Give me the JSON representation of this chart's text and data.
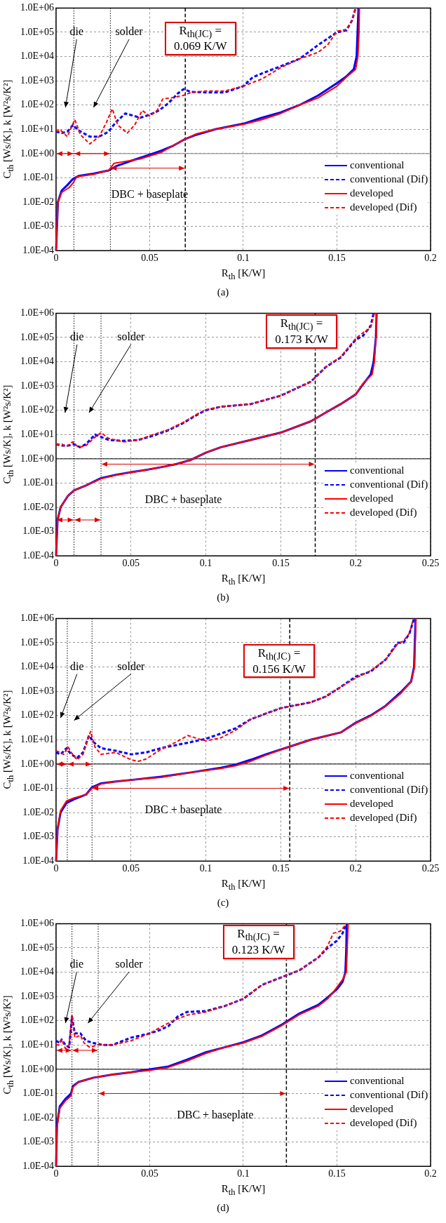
{
  "chart_data": [
    {
      "type": "line",
      "title": "(a)",
      "xlabel": "R$_{th}$ [K/W]",
      "ylabel": "C$_{th}$ [Ws/K], k [W²s/K²]",
      "log": "y",
      "grid": true,
      "legend": "right",
      "marker": "none",
      "xlim": [
        0,
        0.2
      ],
      "xticks": [
        0,
        0.05,
        0.1,
        0.15,
        0.2
      ],
      "ylim": [
        0.0001,
        1000000
      ],
      "yticks": [
        {
          "value": 0.0001,
          "label": "1.0E-04"
        },
        {
          "value": 0.001,
          "label": "1.0E-03"
        },
        {
          "value": 0.01,
          "label": "1.0E-02"
        },
        {
          "value": 0.1,
          "label": "1.0E-01"
        },
        {
          "value": 1,
          "label": "1.0E+00"
        },
        {
          "value": 10,
          "label": "1.0E+01"
        },
        {
          "value": 100,
          "label": "1.0E+02"
        },
        {
          "value": 1000,
          "label": "1.0E+03"
        },
        {
          "value": 10000,
          "label": "1.0E+04"
        },
        {
          "value": 100000,
          "label": "1.0E+05"
        },
        {
          "value": 1000000,
          "label": "1.0E+06"
        }
      ],
      "series": [
        {
          "name": "conventional",
          "color": "#0000ff",
          "line_style": "solid",
          "x": [
            0,
            0.001,
            0.003,
            0.006,
            0.009,
            0.012,
            0.02,
            0.028,
            0.032,
            0.04,
            0.05,
            0.056,
            0.062,
            0.069,
            0.075,
            0.085,
            0.1,
            0.11,
            0.12,
            0.13,
            0.14,
            0.15,
            0.155,
            0.159,
            0.1605,
            0.161,
            0.1615
          ],
          "values": [
            0.0001,
            0.01,
            0.03,
            0.05,
            0.09,
            0.12,
            0.15,
            0.2,
            0.3,
            0.5,
            0.9,
            1.3,
            2,
            4,
            6,
            10,
            17,
            30,
            50,
            100,
            250,
            800,
            1500,
            3000,
            10000,
            100000,
            1000000
          ]
        },
        {
          "name": "conventional (Dif)",
          "color": "#0000ff",
          "line_style": "dashed",
          "x": [
            0,
            0.003,
            0.006,
            0.009,
            0.012,
            0.018,
            0.023,
            0.028,
            0.032,
            0.037,
            0.045,
            0.05,
            0.055,
            0.06,
            0.065,
            0.068,
            0.072,
            0.08,
            0.09,
            0.1,
            0.105,
            0.11,
            0.12,
            0.13,
            0.14,
            0.15,
            0.155,
            0.158,
            0.16
          ],
          "values": [
            8,
            7,
            8,
            15,
            9,
            5,
            5,
            8,
            20,
            45,
            30,
            40,
            60,
            120,
            300,
            450,
            350,
            330,
            330,
            600,
            1400,
            2000,
            4000,
            8000,
            30000,
            100000,
            120000,
            300000,
            1000000
          ]
        },
        {
          "name": "developed",
          "color": "#ff0000",
          "line_style": "solid",
          "x": [
            0,
            0.001,
            0.003,
            0.007,
            0.009,
            0.011,
            0.02,
            0.028,
            0.031,
            0.035,
            0.045,
            0.05,
            0.056,
            0.062,
            0.069,
            0.075,
            0.085,
            0.1,
            0.11,
            0.12,
            0.13,
            0.14,
            0.15,
            0.155,
            0.16,
            0.1612,
            0.1618,
            0.162
          ],
          "values": [
            0.0001,
            0.01,
            0.025,
            0.04,
            0.06,
            0.11,
            0.14,
            0.2,
            0.4,
            0.45,
            0.6,
            0.8,
            1.1,
            2,
            4,
            6.5,
            10,
            16,
            25,
            45,
            100,
            200,
            600,
            1400,
            3000,
            10000,
            100000,
            1000000
          ]
        },
        {
          "name": "developed (Dif)",
          "color": "#ff0000",
          "line_style": "dashed",
          "x": [
            0,
            0.002,
            0.004,
            0.006,
            0.01,
            0.013,
            0.018,
            0.023,
            0.027,
            0.03,
            0.033,
            0.038,
            0.042,
            0.046,
            0.05,
            0.054,
            0.057,
            0.062,
            0.068,
            0.072,
            0.08,
            0.09,
            0.1,
            0.11,
            0.12,
            0.13,
            0.14,
            0.145,
            0.15,
            0.155,
            0.158,
            0.16
          ],
          "values": [
            8,
            10,
            7,
            5,
            25,
            6,
            2.5,
            5,
            20,
            70,
            15,
            7,
            15,
            60,
            35,
            60,
            180,
            200,
            250,
            330,
            380,
            380,
            600,
            1200,
            3500,
            8000,
            15000,
            30000,
            110000,
            130000,
            300000,
            1000000
          ]
        }
      ],
      "ref_lines": [
        {
          "axis": "y",
          "value": 1,
          "label": null,
          "color": "#808080",
          "line_style": "solid"
        },
        {
          "axis": "x",
          "value": 0.0095,
          "label": null,
          "color": "#000000",
          "line_style": "dotted"
        },
        {
          "axis": "x",
          "value": 0.029,
          "label": null,
          "color": "#000000",
          "line_style": "dotted"
        },
        {
          "axis": "x",
          "value": 0.069,
          "label": "R$_{th(JC)}$ = 0.069 K/W",
          "color": "#000000",
          "line_style": "dashed"
        }
      ],
      "annotations": [
        "die",
        "solder",
        "DBC + baseplate"
      ]
    },
    {
      "type": "line",
      "title": "(b)",
      "xlabel": "R$_{th}$ [K/W]",
      "ylabel": "C$_{th}$ [Ws/K], k [W²s/K²]",
      "log": "y",
      "grid": true,
      "legend": "right",
      "marker": "none",
      "xlim": [
        0,
        0.25
      ],
      "xticks": [
        0,
        0.05,
        0.1,
        0.15,
        0.2,
        0.25
      ],
      "ylim": [
        0.0001,
        1000000
      ],
      "yticks": [
        {
          "value": 0.0001,
          "label": "1.0E-04"
        },
        {
          "value": 0.001,
          "label": "1.0E-03"
        },
        {
          "value": 0.01,
          "label": "1.0E-02"
        },
        {
          "value": 0.1,
          "label": "1.0E-01"
        },
        {
          "value": 1,
          "label": "1.0E+00"
        },
        {
          "value": 10,
          "label": "1.0E+01"
        },
        {
          "value": 100,
          "label": "1.0E+02"
        },
        {
          "value": 1000,
          "label": "1.0E+03"
        },
        {
          "value": 10000,
          "label": "1.0E+04"
        },
        {
          "value": 100000,
          "label": "1.0E+05"
        },
        {
          "value": 1000000,
          "label": "1.0E+06"
        }
      ],
      "series": [
        {
          "name": "conventional",
          "color": "#0000ff",
          "line_style": "solid",
          "x": [
            0,
            0.001,
            0.003,
            0.008,
            0.012,
            0.02,
            0.03,
            0.04,
            0.05,
            0.06,
            0.07,
            0.08,
            0.09,
            0.1,
            0.11,
            0.13,
            0.15,
            0.17,
            0.18,
            0.19,
            0.2,
            0.205,
            0.21,
            0.212,
            0.2135,
            0.214
          ],
          "values": [
            0.0001,
            0.003,
            0.01,
            0.03,
            0.05,
            0.08,
            0.16,
            0.22,
            0.28,
            0.35,
            0.45,
            0.6,
            0.9,
            1.8,
            3,
            6,
            12,
            35,
            80,
            180,
            450,
            1200,
            3000,
            10000,
            100000,
            1000000
          ]
        },
        {
          "name": "conventional (Dif)",
          "color": "#0000ff",
          "line_style": "dashed",
          "x": [
            0,
            0.004,
            0.008,
            0.012,
            0.016,
            0.02,
            0.026,
            0.03,
            0.035,
            0.045,
            0.055,
            0.065,
            0.075,
            0.085,
            0.095,
            0.1,
            0.11,
            0.13,
            0.15,
            0.17,
            0.18,
            0.19,
            0.2,
            0.205,
            0.21,
            0.212
          ],
          "values": [
            4,
            3.5,
            3.5,
            4,
            3,
            4,
            10,
            8,
            6,
            5.5,
            6,
            9,
            15,
            30,
            70,
            100,
            140,
            180,
            400,
            1500,
            6000,
            15000,
            80000,
            120000,
            300000,
            1000000
          ]
        },
        {
          "name": "developed",
          "color": "#ff0000",
          "line_style": "solid",
          "x": [
            0,
            0.001,
            0.003,
            0.008,
            0.012,
            0.02,
            0.03,
            0.04,
            0.05,
            0.06,
            0.07,
            0.08,
            0.09,
            0.1,
            0.11,
            0.13,
            0.15,
            0.17,
            0.18,
            0.19,
            0.2,
            0.205,
            0.211,
            0.2125,
            0.2135,
            0.2138
          ],
          "values": [
            0.0001,
            0.003,
            0.01,
            0.03,
            0.05,
            0.08,
            0.15,
            0.21,
            0.27,
            0.35,
            0.45,
            0.6,
            0.9,
            1.8,
            3,
            6,
            12,
            35,
            80,
            180,
            450,
            1300,
            3000,
            10000,
            100000,
            1000000
          ]
        },
        {
          "name": "developed (Dif)",
          "color": "#ff0000",
          "line_style": "dashed",
          "x": [
            0,
            0.004,
            0.007,
            0.011,
            0.015,
            0.02,
            0.025,
            0.03,
            0.035,
            0.045,
            0.055,
            0.065,
            0.075,
            0.085,
            0.095,
            0.1,
            0.11,
            0.13,
            0.15,
            0.17,
            0.18,
            0.19,
            0.2,
            0.205,
            0.21,
            0.2125
          ],
          "values": [
            4,
            4,
            3.2,
            5,
            3,
            3.5,
            7,
            12,
            7,
            5,
            6,
            10,
            16,
            32,
            75,
            105,
            140,
            180,
            400,
            1500,
            6000,
            16000,
            90000,
            160000,
            250000,
            1000000
          ]
        }
      ],
      "ref_lines": [
        {
          "axis": "y",
          "value": 1,
          "label": null,
          "color": "#000000",
          "line_style": "solid"
        },
        {
          "axis": "x",
          "value": 0.012,
          "label": null,
          "color": "#000000",
          "line_style": "dotted"
        },
        {
          "axis": "x",
          "value": 0.03,
          "label": null,
          "color": "#000000",
          "line_style": "dotted"
        },
        {
          "axis": "x",
          "value": 0.173,
          "label": "R$_{th(JC)}$ = 0.173 K/W",
          "color": "#000000",
          "line_style": "dashed"
        }
      ],
      "annotations": [
        "die",
        "solder",
        "DBC + baseplate"
      ]
    },
    {
      "type": "line",
      "title": "(c)",
      "xlabel": "R$_{th}$ [K/W]",
      "ylabel": "C$_{th}$ [Ws/K], k [W²s/K²]",
      "log": "y",
      "grid": true,
      "legend": "right",
      "marker": "none",
      "xlim": [
        0,
        0.25
      ],
      "xticks": [
        0,
        0.05,
        0.1,
        0.15,
        0.2,
        0.25
      ],
      "ylim": [
        0.0001,
        1000000
      ],
      "yticks": [
        {
          "value": 0.0001,
          "label": "1.0E-04"
        },
        {
          "value": 0.001,
          "label": "1.0E-03"
        },
        {
          "value": 0.01,
          "label": "1.0E-02"
        },
        {
          "value": 0.1,
          "label": "1.0E-01"
        },
        {
          "value": 1,
          "label": "1.0E+00"
        },
        {
          "value": 10,
          "label": "1.0E+01"
        },
        {
          "value": 100,
          "label": "1.0E+02"
        },
        {
          "value": 1000,
          "label": "1.0E+03"
        },
        {
          "value": 10000,
          "label": "1.0E+04"
        },
        {
          "value": 100000,
          "label": "1.0E+05"
        },
        {
          "value": 1000000,
          "label": "1.0E+06"
        }
      ],
      "series": [
        {
          "name": "conventional",
          "color": "#0000ff",
          "line_style": "solid",
          "x": [
            0,
            0.001,
            0.003,
            0.007,
            0.012,
            0.02,
            0.024,
            0.03,
            0.04,
            0.05,
            0.07,
            0.09,
            0.11,
            0.12,
            0.13,
            0.14,
            0.155,
            0.17,
            0.19,
            0.2,
            0.21,
            0.22,
            0.23,
            0.237,
            0.239,
            0.2395,
            0.24
          ],
          "values": [
            0.0001,
            0.002,
            0.01,
            0.025,
            0.035,
            0.055,
            0.11,
            0.16,
            0.19,
            0.22,
            0.3,
            0.45,
            0.7,
            0.95,
            1.5,
            2.5,
            5,
            10,
            20,
            50,
            100,
            250,
            900,
            2500,
            10000,
            100000,
            1000000
          ]
        },
        {
          "name": "conventional (Dif)",
          "color": "#0000ff",
          "line_style": "dashed",
          "x": [
            0,
            0.003,
            0.007,
            0.01,
            0.014,
            0.018,
            0.022,
            0.025,
            0.03,
            0.04,
            0.05,
            0.06,
            0.07,
            0.08,
            0.09,
            0.1,
            0.11,
            0.12,
            0.13,
            0.14,
            0.15,
            0.17,
            0.18,
            0.19,
            0.2,
            0.21,
            0.22,
            0.228,
            0.232,
            0.236,
            0.239
          ],
          "values": [
            3,
            2.5,
            4.5,
            2.5,
            1.8,
            3,
            15,
            8,
            4.5,
            3.5,
            2.5,
            3,
            4.5,
            6,
            8,
            11,
            18,
            30,
            70,
            120,
            200,
            350,
            600,
            1500,
            4000,
            6500,
            20000,
            100000,
            100000,
            250000,
            1000000
          ]
        },
        {
          "name": "developed",
          "color": "#ff0000",
          "line_style": "solid",
          "x": [
            0,
            0.001,
            0.003,
            0.007,
            0.012,
            0.02,
            0.024,
            0.03,
            0.04,
            0.05,
            0.07,
            0.09,
            0.11,
            0.12,
            0.13,
            0.14,
            0.155,
            0.17,
            0.19,
            0.2,
            0.21,
            0.22,
            0.23,
            0.237,
            0.2393,
            0.2398,
            0.2403
          ],
          "values": [
            0.0001,
            0.002,
            0.012,
            0.03,
            0.04,
            0.055,
            0.1,
            0.15,
            0.19,
            0.22,
            0.28,
            0.45,
            0.65,
            0.85,
            1.3,
            2.3,
            5,
            10,
            20,
            48,
            95,
            240,
            800,
            2500,
            10000,
            100000,
            1000000
          ]
        },
        {
          "name": "developed (Dif)",
          "color": "#ff0000",
          "line_style": "dashed",
          "x": [
            0,
            0.003,
            0.005,
            0.008,
            0.011,
            0.014,
            0.018,
            0.023,
            0.026,
            0.03,
            0.04,
            0.05,
            0.055,
            0.06,
            0.07,
            0.08,
            0.088,
            0.095,
            0.1,
            0.11,
            0.12,
            0.13,
            0.14,
            0.15,
            0.17,
            0.18,
            0.19,
            0.2,
            0.21,
            0.22,
            0.228,
            0.232,
            0.236,
            0.2385
          ],
          "values": [
            3.5,
            3,
            2.5,
            5,
            2.5,
            1.5,
            2.5,
            22,
            5,
            2.5,
            3,
            1.5,
            1.3,
            1.6,
            4,
            8,
            15,
            11,
            9,
            12,
            25,
            70,
            120,
            200,
            350,
            600,
            1500,
            3500,
            7000,
            20000,
            90000,
            120000,
            250000,
            1000000
          ]
        }
      ],
      "ref_lines": [
        {
          "axis": "y",
          "value": 1,
          "label": null,
          "color": "#000000",
          "line_style": "solid"
        },
        {
          "axis": "x",
          "value": 0.0075,
          "label": null,
          "color": "#000000",
          "line_style": "dotted"
        },
        {
          "axis": "x",
          "value": 0.024,
          "label": null,
          "color": "#000000",
          "line_style": "dotted"
        },
        {
          "axis": "x",
          "value": 0.156,
          "label": "R$_{th(JC)}$ = 0.156 K/W",
          "color": "#000000",
          "line_style": "dashed"
        }
      ],
      "annotations": [
        "die",
        "solder",
        "DBC + baseplate"
      ]
    },
    {
      "type": "line",
      "title": "(d)",
      "xlabel": "R$_{th}$ [K/W]",
      "ylabel": "C$_{th}$ [Ws/K], k [W²s/K²]",
      "log": "y",
      "grid": true,
      "legend": "right",
      "marker": "none",
      "xlim": [
        0,
        0.2
      ],
      "xticks": [
        0,
        0.05,
        0.1,
        0.15,
        0.2
      ],
      "ylim": [
        0.0001,
        1000000
      ],
      "yticks": [
        {
          "value": 0.0001,
          "label": "1.0E-04"
        },
        {
          "value": 0.001,
          "label": "1.0E-03"
        },
        {
          "value": 0.01,
          "label": "1.0E-02"
        },
        {
          "value": 0.1,
          "label": "1.0E-01"
        },
        {
          "value": 1,
          "label": "1.0E+00"
        },
        {
          "value": 10,
          "label": "1.0E+01"
        },
        {
          "value": 100,
          "label": "1.0E+02"
        },
        {
          "value": 1000,
          "label": "1.0E+03"
        },
        {
          "value": 10000,
          "label": "1.0E+04"
        },
        {
          "value": 100000,
          "label": "1.0E+05"
        },
        {
          "value": 1000000,
          "label": "1.0E+06"
        }
      ],
      "series": [
        {
          "name": "conventional",
          "color": "#0000ff",
          "line_style": "solid",
          "x": [
            0,
            0.0005,
            0.002,
            0.005,
            0.008,
            0.009,
            0.012,
            0.02,
            0.03,
            0.04,
            0.05,
            0.06,
            0.07,
            0.08,
            0.09,
            0.1,
            0.11,
            0.12,
            0.13,
            0.14,
            0.145,
            0.15,
            0.153,
            0.1545,
            0.155,
            0.1552
          ],
          "values": [
            0.0001,
            0.005,
            0.03,
            0.06,
            0.1,
            0.2,
            0.3,
            0.45,
            0.6,
            0.75,
            1,
            1.3,
            2.5,
            5,
            8,
            13,
            25,
            65,
            200,
            450,
            900,
            2000,
            4000,
            10000,
            100000,
            1000000
          ]
        },
        {
          "name": "conventional (Dif)",
          "color": "#0000ff",
          "line_style": "dashed",
          "x": [
            0,
            0.002,
            0.003,
            0.005,
            0.007,
            0.0085,
            0.01,
            0.013,
            0.016,
            0.02,
            0.025,
            0.03,
            0.04,
            0.05,
            0.055,
            0.06,
            0.065,
            0.07,
            0.08,
            0.09,
            0.1,
            0.11,
            0.12,
            0.13,
            0.14,
            0.145,
            0.15,
            0.153,
            0.155
          ],
          "values": [
            15,
            12,
            17,
            10,
            8,
            150,
            30,
            30,
            15,
            12,
            10,
            10,
            20,
            30,
            40,
            60,
            150,
            230,
            250,
            400,
            800,
            3000,
            6000,
            12000,
            40000,
            100000,
            200000,
            400000,
            1000000
          ]
        },
        {
          "name": "developed",
          "color": "#ff0000",
          "line_style": "solid",
          "x": [
            0,
            0.0005,
            0.002,
            0.005,
            0.008,
            0.009,
            0.012,
            0.02,
            0.03,
            0.04,
            0.05,
            0.06,
            0.07,
            0.08,
            0.09,
            0.1,
            0.11,
            0.12,
            0.13,
            0.14,
            0.145,
            0.148,
            0.153,
            0.155,
            0.1555,
            0.156
          ],
          "values": [
            0.0001,
            0.004,
            0.025,
            0.05,
            0.08,
            0.18,
            0.3,
            0.45,
            0.6,
            0.75,
            0.9,
            1.2,
            2.2,
            4.5,
            8,
            12,
            23,
            60,
            180,
            400,
            800,
            1500,
            5000,
            10000,
            100000,
            1000000
          ]
        },
        {
          "name": "developed (Dif)",
          "color": "#ff0000",
          "line_style": "dashed",
          "x": [
            0,
            0.0015,
            0.003,
            0.005,
            0.007,
            0.0085,
            0.01,
            0.013,
            0.015,
            0.018,
            0.022,
            0.03,
            0.04,
            0.05,
            0.055,
            0.06,
            0.065,
            0.07,
            0.08,
            0.09,
            0.1,
            0.11,
            0.12,
            0.13,
            0.14,
            0.145,
            0.148,
            0.152,
            0.155
          ],
          "values": [
            10,
            10,
            17,
            7,
            10,
            170,
            20,
            25,
            12,
            8,
            10,
            10,
            15,
            30,
            50,
            80,
            120,
            170,
            230,
            400,
            800,
            3000,
            6000,
            12000,
            40000,
            120000,
            400000,
            500000,
            1000000
          ]
        }
      ],
      "ref_lines": [
        {
          "axis": "y",
          "value": 1,
          "label": null,
          "color": "#000000",
          "line_style": "solid"
        },
        {
          "axis": "x",
          "value": 0.0085,
          "label": null,
          "color": "#000000",
          "line_style": "dotted"
        },
        {
          "axis": "x",
          "value": 0.0225,
          "label": null,
          "color": "#000000",
          "line_style": "dotted"
        },
        {
          "axis": "x",
          "value": 0.123,
          "label": "R$_{th(JC)}$ = 0.123 K/W",
          "color": "#000000",
          "line_style": "dashed"
        }
      ],
      "annotations": [
        "die",
        "solder",
        "DBC + baseplate"
      ]
    }
  ]
}
